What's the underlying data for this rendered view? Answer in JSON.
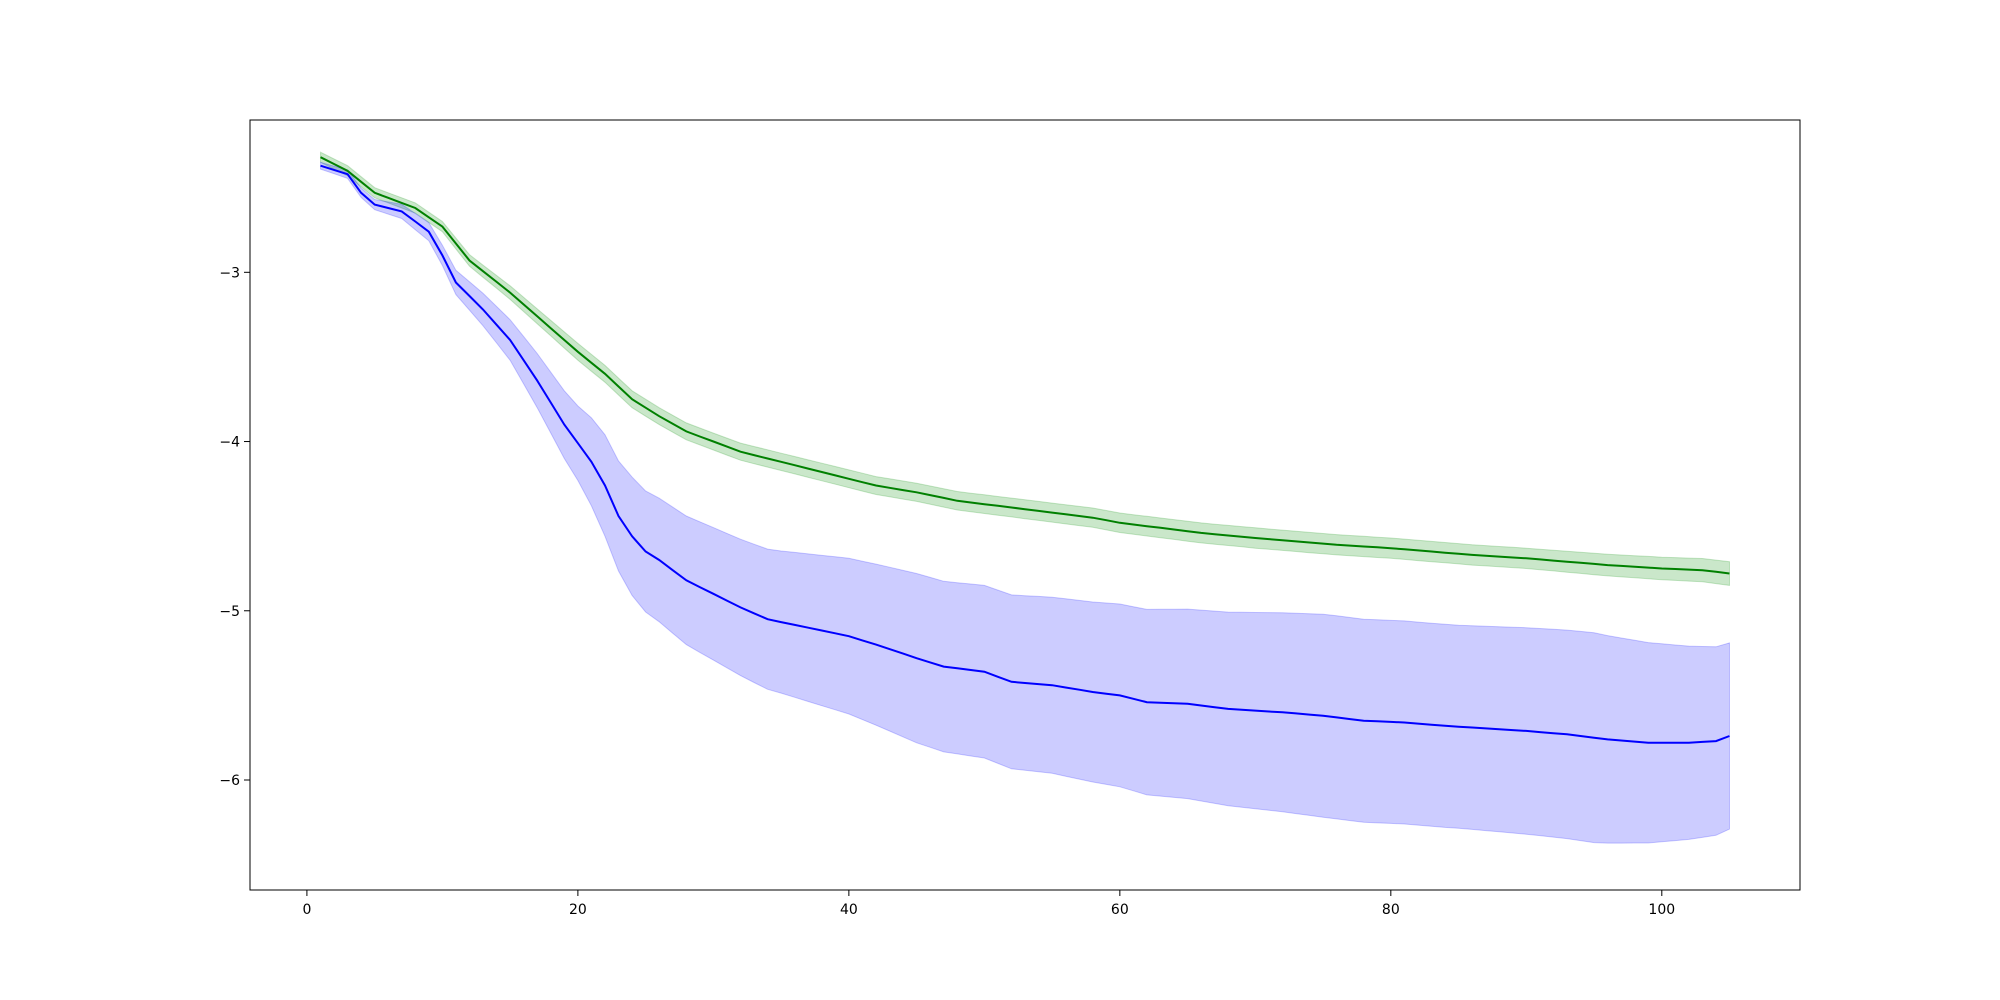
{
  "chart_data": {
    "type": "line",
    "title": "",
    "xlabel": "",
    "ylabel": "",
    "xlim": [
      -4.2,
      110.2
    ],
    "ylim": [
      -6.65,
      -2.1
    ],
    "grid": false,
    "legend": "none",
    "x_ticks": [
      0,
      20,
      40,
      60,
      80,
      100
    ],
    "x_tick_labels": [
      "0",
      "20",
      "40",
      "60",
      "80",
      "100"
    ],
    "y_ticks": [
      -3,
      -4,
      -5,
      -6
    ],
    "y_tick_labels": [
      "−3",
      "−4",
      "−5",
      "−6"
    ],
    "series": [
      {
        "color": "#008000",
        "band_color": "#2ca02c",
        "band_opacity": 0.25,
        "points": [
          [
            1,
            -2.32
          ],
          [
            3,
            -2.4
          ],
          [
            5,
            -2.53
          ],
          [
            8,
            -2.62
          ],
          [
            10,
            -2.73
          ],
          [
            12,
            -2.93
          ],
          [
            15,
            -3.12
          ],
          [
            18,
            -3.33
          ],
          [
            20,
            -3.47
          ],
          [
            22,
            -3.6
          ],
          [
            24,
            -3.75
          ],
          [
            26,
            -3.85
          ],
          [
            28,
            -3.94
          ],
          [
            30,
            -4.0
          ],
          [
            32,
            -4.06
          ],
          [
            35,
            -4.12
          ],
          [
            38,
            -4.18
          ],
          [
            40,
            -4.22
          ],
          [
            42,
            -4.26
          ],
          [
            45,
            -4.3
          ],
          [
            48,
            -4.35
          ],
          [
            50,
            -4.37
          ],
          [
            52,
            -4.39
          ],
          [
            55,
            -4.42
          ],
          [
            58,
            -4.45
          ],
          [
            60,
            -4.48
          ],
          [
            63,
            -4.51
          ],
          [
            66,
            -4.54
          ],
          [
            70,
            -4.57
          ],
          [
            73,
            -4.59
          ],
          [
            76,
            -4.61
          ],
          [
            80,
            -4.63
          ],
          [
            83,
            -4.65
          ],
          [
            86,
            -4.67
          ],
          [
            90,
            -4.69
          ],
          [
            93,
            -4.71
          ],
          [
            96,
            -4.73
          ],
          [
            100,
            -4.75
          ],
          [
            103,
            -4.76
          ],
          [
            105,
            -4.78
          ]
        ],
        "band_width": [
          [
            1,
            0.03
          ],
          [
            10,
            0.03
          ],
          [
            20,
            0.05
          ],
          [
            30,
            0.05
          ],
          [
            50,
            0.055
          ],
          [
            70,
            0.06
          ],
          [
            90,
            0.06
          ],
          [
            105,
            0.07
          ]
        ]
      },
      {
        "color": "#0000ff",
        "band_color": "#0000ff",
        "band_opacity": 0.2,
        "points": [
          [
            1,
            -2.37
          ],
          [
            3,
            -2.42
          ],
          [
            4,
            -2.53
          ],
          [
            5,
            -2.6
          ],
          [
            7,
            -2.64
          ],
          [
            9,
            -2.76
          ],
          [
            10,
            -2.9
          ],
          [
            11,
            -3.06
          ],
          [
            13,
            -3.22
          ],
          [
            15,
            -3.4
          ],
          [
            17,
            -3.64
          ],
          [
            19,
            -3.9
          ],
          [
            21,
            -4.12
          ],
          [
            22,
            -4.26
          ],
          [
            23,
            -4.44
          ],
          [
            24,
            -4.56
          ],
          [
            25,
            -4.65
          ],
          [
            26,
            -4.7
          ],
          [
            28,
            -4.82
          ],
          [
            30,
            -4.9
          ],
          [
            32,
            -4.98
          ],
          [
            34,
            -5.05
          ],
          [
            37,
            -5.1
          ],
          [
            40,
            -5.15
          ],
          [
            42,
            -5.2
          ],
          [
            45,
            -5.28
          ],
          [
            47,
            -5.33
          ],
          [
            50,
            -5.36
          ],
          [
            52,
            -5.42
          ],
          [
            55,
            -5.44
          ],
          [
            58,
            -5.48
          ],
          [
            60,
            -5.5
          ],
          [
            62,
            -5.54
          ],
          [
            65,
            -5.55
          ],
          [
            68,
            -5.58
          ],
          [
            72,
            -5.6
          ],
          [
            75,
            -5.62
          ],
          [
            78,
            -5.65
          ],
          [
            81,
            -5.66
          ],
          [
            84,
            -5.68
          ],
          [
            88,
            -5.7
          ],
          [
            90,
            -5.71
          ],
          [
            93,
            -5.73
          ],
          [
            96,
            -5.76
          ],
          [
            99,
            -5.78
          ],
          [
            102,
            -5.78
          ],
          [
            104,
            -5.77
          ],
          [
            105,
            -5.74
          ]
        ],
        "band_width": [
          [
            1,
            0.02
          ],
          [
            5,
            0.03
          ],
          [
            10,
            0.06
          ],
          [
            15,
            0.12
          ],
          [
            20,
            0.22
          ],
          [
            22,
            0.3
          ],
          [
            24,
            0.35
          ],
          [
            28,
            0.38
          ],
          [
            35,
            0.42
          ],
          [
            45,
            0.5
          ],
          [
            55,
            0.52
          ],
          [
            65,
            0.56
          ],
          [
            75,
            0.6
          ],
          [
            85,
            0.6
          ],
          [
            95,
            0.62
          ],
          [
            105,
            0.55
          ]
        ]
      }
    ]
  }
}
